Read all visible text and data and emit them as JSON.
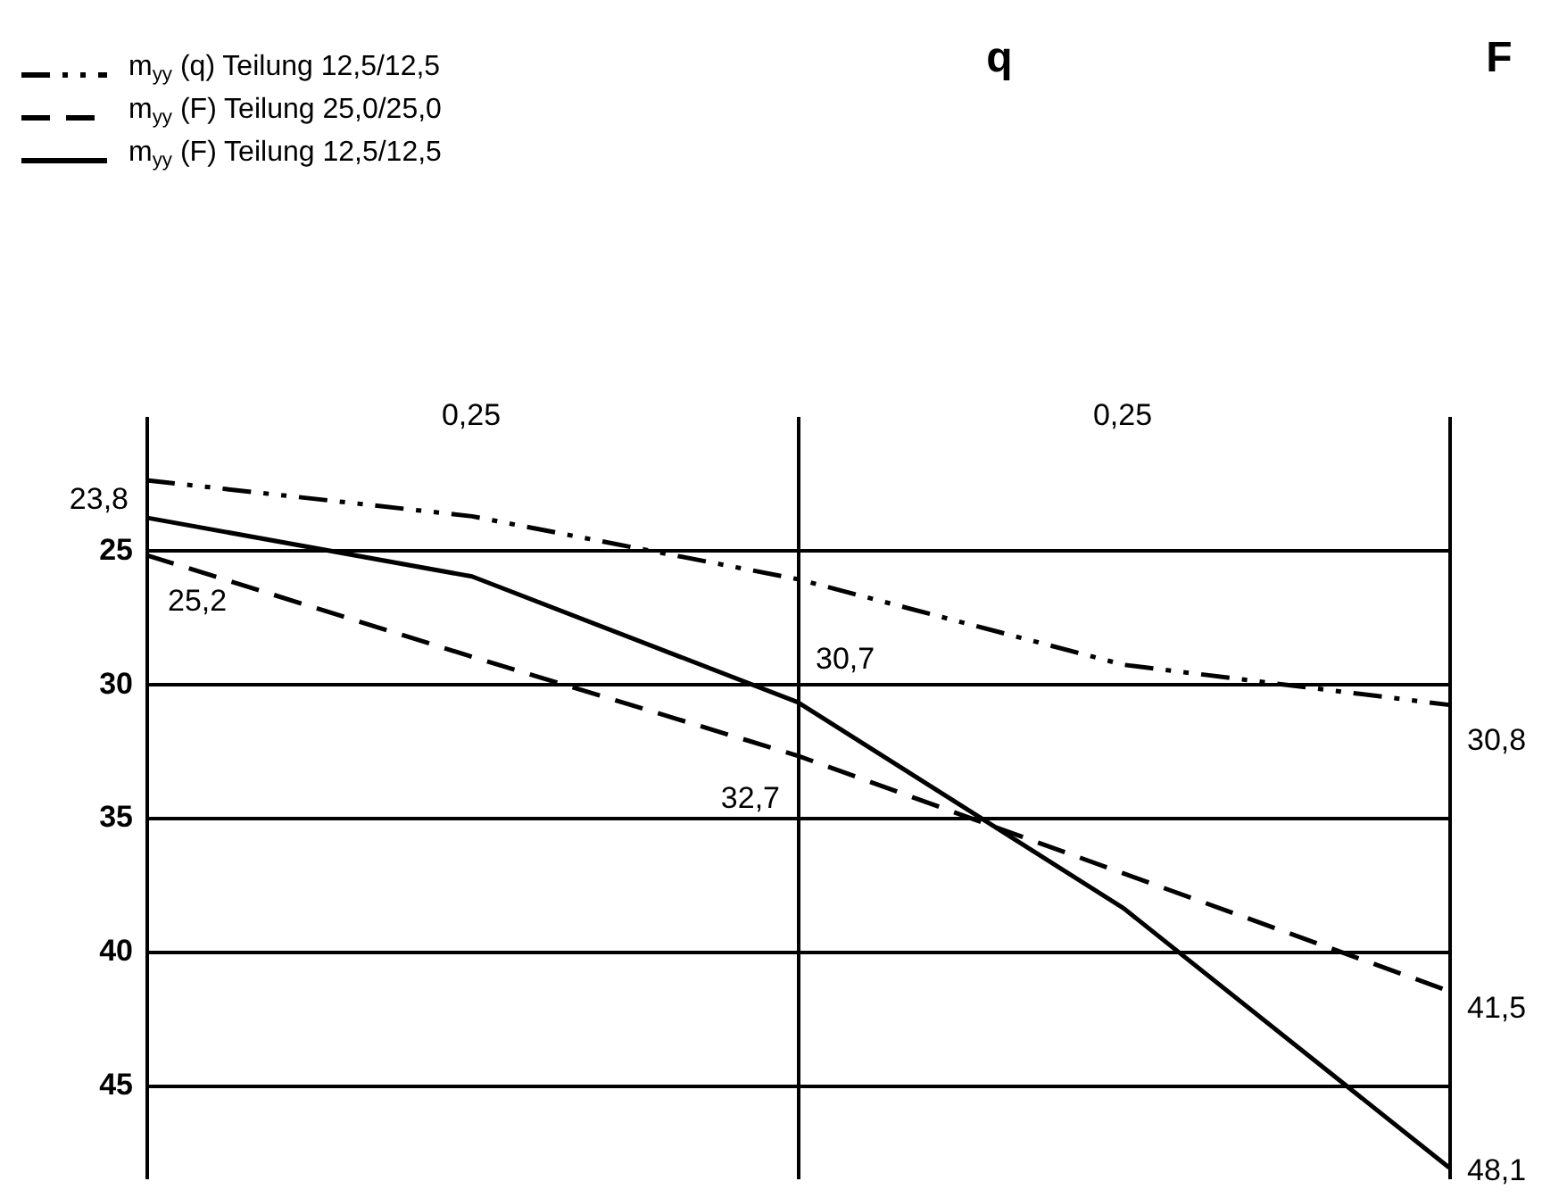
{
  "chart_data": {
    "type": "line",
    "categories": [
      null,
      null,
      null,
      null,
      null
    ],
    "ylim": [
      48.5,
      20
    ],
    "yticks": [
      25,
      30,
      35,
      40,
      45
    ],
    "tick_labels": "y",
    "grid": true,
    "legend": "top left",
    "series": [
      {
        "name": "m$_{yy}$ (q) Teilung 12,5/12,5",
        "color": "#000000",
        "line_style": "dashdot",
        "values": [
          22.4,
          23.75,
          26.1,
          29.3,
          30.8
        ],
        "value_labels": [
          null,
          null,
          null,
          null,
          "30,8"
        ]
      },
      {
        "name": "m$_{yy}$ (F) Teilung 25,0/25,0",
        "color": "#000000",
        "line_style": "dashed",
        "values": [
          25.2,
          29.0,
          32.7,
          37.1,
          41.5
        ],
        "value_labels": [
          "25,2",
          null,
          "32,7",
          null,
          "41,5"
        ]
      },
      {
        "name": "m$_{yy}$ (F) Teilung 12,5/12,5",
        "color": "#000000",
        "line_style": "solid",
        "values": [
          23.8,
          26.0,
          30.7,
          38.4,
          48.1
        ],
        "value_labels": [
          "23,8",
          null,
          "30,7",
          null,
          "48,1"
        ]
      }
    ],
    "annotations": [
      "q",
      "F",
      "0,25",
      "0,25"
    ]
  }
}
